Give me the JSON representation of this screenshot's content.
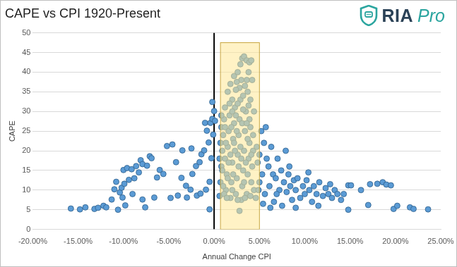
{
  "chart_data": {
    "type": "scatter",
    "title": "CAPE vs CPI 1920-Present",
    "logo": [
      "RIA",
      "Pro"
    ],
    "x_label": "Annual Change CPI",
    "y_label": "CAPE",
    "color": "#5b9bd5",
    "marker": "circle",
    "grid": true,
    "xlim": [
      -20,
      25
    ],
    "xticks": [
      {
        "value": -20,
        "label": "-20.00%"
      },
      {
        "value": -15,
        "label": "-15.00%"
      },
      {
        "value": -10,
        "label": "-10.00%"
      },
      {
        "value": -5,
        "label": "-5.00%"
      },
      {
        "value": 0,
        "label": "0.00%"
      },
      {
        "value": 5,
        "label": "5.00%"
      },
      {
        "value": 10,
        "label": "10.00%"
      },
      {
        "value": 15,
        "label": "15.00%"
      },
      {
        "value": 20,
        "label": "20.00%"
      },
      {
        "value": 25,
        "label": "25.00%"
      }
    ],
    "ylim": [
      0,
      50
    ],
    "yticks": [
      0,
      5,
      10,
      15,
      20,
      25,
      30,
      35,
      40,
      45,
      50
    ],
    "vline_x": 0,
    "highlight_xlim": [
      0.7,
      5.0
    ],
    "highlight_ylim": [
      0,
      47.5
    ],
    "x": [
      -15.8,
      -14.8,
      -14.2,
      -13.2,
      -12.8,
      -12.2,
      -11.9,
      -11.3,
      -11.0,
      -10.8,
      -10.6,
      -10.4,
      -10.2,
      -10.1,
      -10.0,
      -9.9,
      -9.8,
      -9.6,
      -9.4,
      -9.1,
      -9.0,
      -8.8,
      -8.6,
      -8.3,
      -8.1,
      -7.9,
      -7.9,
      -7.6,
      -7.4,
      -7.1,
      -6.9,
      -6.6,
      -6.3,
      -6.0,
      -5.6,
      -5.2,
      -4.8,
      -4.6,
      -4.2,
      -4.0,
      -3.6,
      -3.5,
      -3.1,
      -3.0,
      -2.6,
      -2.5,
      -2.4,
      -2.0,
      -1.9,
      -1.6,
      -1.5,
      -1.4,
      -1.1,
      -1.0,
      -0.9,
      -0.8,
      -0.6,
      -0.5,
      -0.5,
      -0.4,
      -0.3,
      -0.2,
      -0.2,
      -0.1,
      0,
      0.1,
      0.6,
      0.7,
      0.8,
      0.9,
      1.0,
      1.1,
      0.7,
      0.8,
      1.2,
      1.3,
      1.4,
      1.5,
      1.6,
      1.7,
      1.8,
      1.9,
      2.0,
      2.1,
      2.2,
      2.3,
      2.4,
      2.5,
      2.6,
      2.7,
      2.8,
      2.9,
      3.0,
      3.1,
      3.2,
      3.3,
      3.4,
      3.5,
      3.6,
      3.7,
      3.8,
      3.9,
      4.0,
      4.1,
      4.2,
      4.3,
      4.4,
      1.5,
      1.8,
      2.2,
      2.6,
      2.9,
      3.1,
      3.3,
      3.6,
      3.9,
      4.1,
      3.8,
      3.6,
      3.4,
      3.7,
      4.0,
      3.2,
      2.8,
      2.4,
      2.0,
      1.7,
      1.2,
      3.0,
      2.5,
      4.2,
      0.9,
      1.1,
      1.3,
      1.6,
      1.9,
      2.1,
      2.3,
      2.5,
      2.7,
      2.9,
      3.1,
      3.3,
      3.5,
      3.7,
      3.9,
      4.1,
      4.3,
      0.6,
      1.0,
      1.4,
      2.0,
      2.6,
      3.4,
      4.0,
      2.8,
      1.2,
      2.4,
      3.6,
      2.2,
      1.8,
      3.0,
      1.5,
      3.2,
      2.0,
      4.4,
      0.8,
      2.6,
      3.8,
      4.7,
      4.8,
      5.0,
      5.0,
      5.2,
      5.3,
      5.5,
      5.6,
      5.8,
      6.0,
      6.1,
      6.3,
      6.5,
      6.6,
      6.8,
      7.0,
      7.2,
      7.4,
      7.5,
      7.7,
      8.0,
      8.2,
      8.4,
      8.6,
      8.8,
      9.0,
      9.2,
      9.5,
      9.8,
      10.0,
      10.2,
      10.5,
      10.8,
      11.0,
      11.3,
      11.6,
      12.0,
      12.3,
      12.6,
      13.0,
      13.3,
      13.6,
      14.0,
      14.3,
      14.8,
      14.8,
      5.4,
      6.2,
      9.0,
      11.5,
      4.9,
      5.7,
      4.6,
      6.9,
      8.3,
      10.4,
      12.8,
      7.9,
      15.1,
      16.2,
      17.0,
      17.2,
      18.0,
      18.6,
      19.0,
      19.5,
      19.8,
      20.2,
      21.6,
      22.0,
      23.6
    ],
    "values": [
      5.3,
      5.1,
      5.6,
      5.2,
      5.5,
      6.0,
      5.6,
      7.6,
      10.2,
      12.1,
      5.0,
      9.4,
      10.6,
      8.1,
      15.1,
      11.6,
      6.1,
      15.6,
      12.6,
      15.3,
      9.0,
      13.0,
      16.1,
      14.5,
      17.6,
      16.6,
      7.6,
      5.6,
      16.2,
      18.6,
      18.1,
      8.1,
      13.2,
      15.1,
      14.1,
      21.2,
      8.0,
      21.6,
      17.1,
      8.6,
      13.1,
      20.1,
      11.1,
      8.1,
      10.1,
      20.6,
      14.1,
      16.1,
      8.6,
      17.1,
      9.1,
      19.1,
      20.1,
      27.1,
      10.1,
      25.1,
      22.1,
      5.1,
      12.1,
      27.1,
      18.1,
      28.1,
      32.4,
      24.1,
      30.1,
      27.6,
      8.5,
      12,
      16,
      20,
      24,
      28,
      22,
      26,
      18,
      10,
      14,
      21,
      25,
      29,
      8,
      12,
      17,
      23,
      27,
      31,
      9,
      13,
      19,
      24,
      28,
      33,
      7.5,
      11,
      15,
      20,
      25,
      30,
      9,
      14,
      18,
      22,
      26,
      12,
      16,
      20,
      10,
      35,
      37,
      39,
      40,
      42,
      43.5,
      44,
      43,
      42.5,
      43,
      40,
      38,
      36.5,
      35,
      33,
      34,
      36,
      35.5,
      33,
      32,
      31,
      38,
      37.5,
      38,
      15,
      9,
      22,
      17,
      26,
      14,
      20,
      25,
      16,
      21,
      27,
      12,
      17,
      23,
      28,
      19,
      24,
      18,
      11,
      8,
      10,
      7.5,
      8,
      8.5,
      4.7,
      26,
      29,
      27,
      22,
      19,
      18,
      13,
      30.5,
      30,
      30,
      29,
      32,
      31.5,
      21,
      17,
      19,
      12,
      25,
      14,
      22,
      9,
      18,
      16,
      11,
      21,
      14,
      7,
      13,
      18,
      10,
      15,
      6,
      12,
      9.5,
      14,
      11,
      7.5,
      12.5,
      10,
      13,
      8,
      11,
      9,
      12.5,
      10,
      7,
      11,
      9,
      12,
      8.5,
      10.5,
      9,
      8,
      10,
      9,
      7.5,
      9,
      5,
      11.2,
      6.5,
      5.5,
      5.5,
      6,
      10,
      26,
      8,
      9,
      16,
      14.5,
      11.5,
      20,
      11.2,
      10,
      6.2,
      11.5,
      11.6,
      12,
      11.4,
      11.2,
      5.2,
      6,
      5.6,
      5.2,
      5.1
    ]
  }
}
